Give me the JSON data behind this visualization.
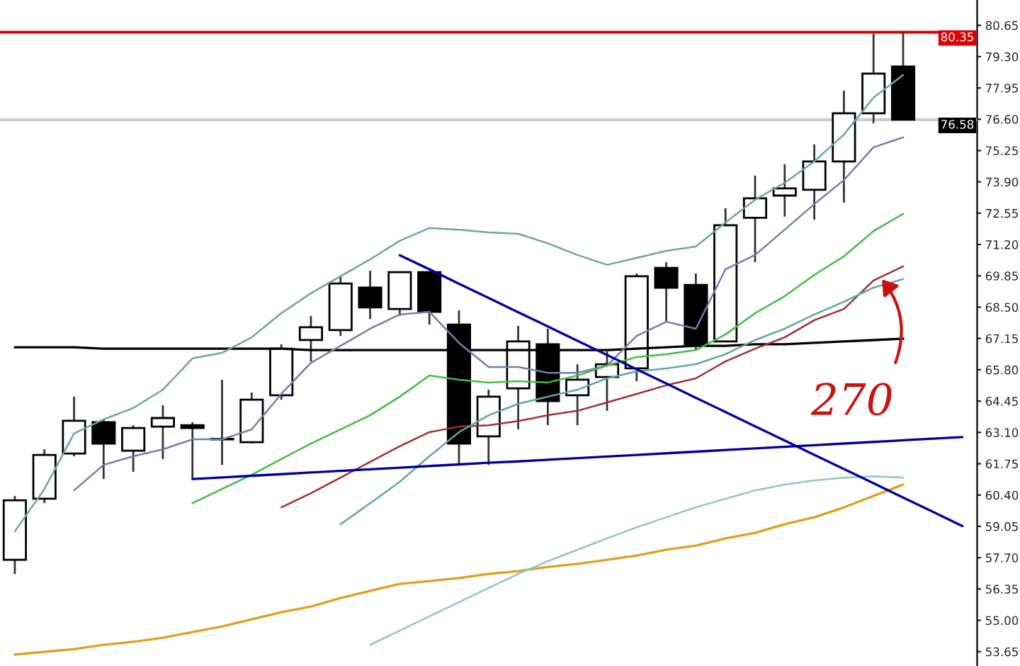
{
  "chart_data": {
    "type": "candlestick",
    "categories": [
      null,
      null,
      null,
      null,
      null,
      null,
      null,
      null,
      null,
      null,
      null,
      null,
      null,
      null,
      null,
      null,
      null,
      null,
      null,
      null,
      null,
      null,
      null,
      null,
      null,
      null,
      null,
      null,
      null,
      null,
      null,
      null,
      null
    ],
    "ohlc": [
      [
        57.61,
        60.36,
        56.99,
        60.17
      ],
      [
        60.24,
        62.37,
        60.05,
        62.13
      ],
      [
        62.19,
        64.64,
        62.07,
        63.6
      ],
      [
        63.54,
        63.66,
        61.09,
        62.62
      ],
      [
        62.31,
        63.41,
        61.4,
        63.29
      ],
      [
        63.35,
        64.27,
        61.95,
        63.72
      ],
      [
        63.41,
        63.54,
        61.09,
        63.29
      ],
      [
        62.8,
        65.37,
        61.7,
        62.8
      ],
      [
        62.68,
        64.82,
        62.62,
        64.51
      ],
      [
        64.7,
        66.9,
        64.51,
        66.71
      ],
      [
        67.08,
        68.12,
        66.16,
        67.63
      ],
      [
        67.51,
        69.83,
        67.26,
        69.52
      ],
      [
        69.34,
        70.07,
        67.99,
        68.49
      ],
      [
        68.42,
        70.01,
        68.12,
        70.01
      ],
      [
        70.01,
        70.01,
        67.75,
        68.3
      ],
      [
        67.75,
        68.36,
        61.7,
        62.62
      ],
      [
        62.93,
        64.94,
        61.7,
        64.64
      ],
      [
        65.0,
        67.69,
        63.23,
        67.02
      ],
      [
        66.9,
        67.57,
        63.41,
        64.45
      ],
      [
        64.7,
        66.04,
        63.41,
        65.37
      ],
      [
        65.49,
        66.59,
        64.03,
        66.04
      ],
      [
        65.86,
        69.95,
        65.31,
        69.83
      ],
      [
        70.19,
        70.44,
        67.87,
        69.34
      ],
      [
        69.46,
        69.95,
        66.65,
        66.9
      ],
      [
        67.02,
        72.76,
        67.02,
        72.03
      ],
      [
        72.35,
        74.17,
        70.44,
        73.19
      ],
      [
        73.31,
        74.66,
        72.4,
        73.62
      ],
      [
        73.56,
        75.51,
        72.27,
        74.78
      ],
      [
        74.78,
        77.83,
        73.01,
        76.86
      ],
      [
        76.86,
        80.28,
        76.43,
        78.57
      ],
      [
        78.87,
        80.35,
        76.55,
        76.58
      ],
      null,
      null
    ],
    "series": [
      {
        "type": "line",
        "color": "#000000",
        "values": [
          66.77,
          66.77,
          66.77,
          66.71,
          66.71,
          66.71,
          66.71,
          66.71,
          66.71,
          66.71,
          66.65,
          66.65,
          66.65,
          66.65,
          66.65,
          66.65,
          66.65,
          66.65,
          66.65,
          66.65,
          66.65,
          66.71,
          66.77,
          66.83,
          66.83,
          66.9,
          66.9,
          66.96,
          67.02,
          67.08,
          67.14,
          null,
          null
        ]
      },
      {
        "type": "line",
        "color": "#e0a020",
        "values": [
          53.52,
          53.64,
          53.76,
          53.94,
          54.07,
          54.25,
          54.49,
          54.74,
          55.04,
          55.35,
          55.59,
          55.96,
          56.27,
          56.57,
          56.69,
          56.82,
          57.0,
          57.12,
          57.3,
          57.43,
          57.61,
          57.79,
          58.04,
          58.22,
          58.53,
          58.77,
          59.14,
          59.44,
          59.87,
          60.36,
          60.85,
          null,
          null
        ]
      },
      {
        "type": "line",
        "color": "#8fc8c4",
        "values": [
          null,
          null,
          null,
          null,
          null,
          null,
          null,
          null,
          null,
          null,
          null,
          null,
          53.94,
          54.55,
          55.17,
          55.78,
          56.39,
          57.0,
          57.55,
          58.04,
          58.53,
          59.01,
          59.44,
          59.87,
          60.24,
          60.6,
          60.85,
          61.03,
          61.15,
          61.21,
          61.15,
          null,
          null
        ]
      },
      {
        "type": "line",
        "color": "#6aa89e",
        "values": [
          58.83,
          60.66,
          63.05,
          63.66,
          64.15,
          64.94,
          66.29,
          66.53,
          67.2,
          68.24,
          69.1,
          69.83,
          70.56,
          71.36,
          71.91,
          71.84,
          71.72,
          71.66,
          71.25,
          70.75,
          70.32,
          70.62,
          70.93,
          71.11,
          72.15,
          73.13,
          73.86,
          74.78,
          75.94,
          77.53,
          78.51,
          null,
          null
        ]
      },
      {
        "type": "line",
        "color": "#7080a8",
        "values": [
          null,
          null,
          60.6,
          61.7,
          62.07,
          62.37,
          62.8,
          62.8,
          63.23,
          64.76,
          66.1,
          66.83,
          67.57,
          68.18,
          68.3,
          66.96,
          65.92,
          65.92,
          65.67,
          65.67,
          65.98,
          67.26,
          67.87,
          67.57,
          70.13,
          70.75,
          71.84,
          72.94,
          73.98,
          75.39,
          75.82,
          null,
          null
        ]
      },
      {
        "type": "line",
        "color": "#44bb44",
        "values": [
          null,
          null,
          null,
          null,
          null,
          null,
          60.05,
          60.66,
          61.27,
          61.95,
          62.62,
          63.23,
          63.84,
          64.64,
          65.55,
          65.37,
          65.25,
          65.31,
          65.25,
          65.55,
          65.98,
          66.35,
          66.47,
          66.65,
          67.32,
          68.24,
          68.97,
          69.89,
          70.69,
          71.78,
          72.52,
          null,
          null
        ]
      },
      {
        "type": "line",
        "color": "#a03030",
        "values": [
          null,
          null,
          null,
          null,
          null,
          null,
          null,
          null,
          null,
          59.87,
          60.48,
          61.15,
          61.83,
          62.5,
          63.11,
          63.35,
          63.41,
          63.59,
          63.84,
          64.03,
          64.39,
          64.76,
          65.13,
          65.43,
          66.16,
          66.71,
          67.2,
          67.94,
          68.42,
          69.65,
          70.26,
          null,
          null
        ]
      },
      {
        "type": "line",
        "color": "#5fa8a0",
        "values": [
          null,
          null,
          null,
          null,
          null,
          null,
          null,
          null,
          null,
          null,
          null,
          59.14,
          60.05,
          60.97,
          62.07,
          63.11,
          63.84,
          64.33,
          64.64,
          64.94,
          65.43,
          65.73,
          65.86,
          66.04,
          66.47,
          67.08,
          67.57,
          68.18,
          68.73,
          69.34,
          69.71,
          null,
          null
        ]
      },
      {
        "type": "line",
        "color": "#0000a0",
        "values": [
          null,
          null,
          null,
          null,
          null,
          null,
          null,
          null,
          null,
          null,
          null,
          null,
          null,
          70.74,
          70.13,
          69.51,
          68.9,
          68.28,
          67.67,
          67.05,
          66.44,
          65.82,
          65.21,
          64.59,
          63.98,
          63.36,
          62.75,
          62.13,
          61.52,
          60.91,
          60.29,
          59.68,
          59.06
        ]
      },
      {
        "type": "line",
        "color": "#0000a0",
        "values": [
          null,
          null,
          null,
          null,
          null,
          null,
          61.09,
          61.16,
          61.23,
          61.3,
          61.37,
          61.44,
          61.51,
          61.58,
          61.65,
          61.72,
          61.79,
          61.85,
          61.92,
          61.99,
          62.06,
          62.13,
          62.2,
          62.27,
          62.34,
          62.41,
          62.48,
          62.55,
          62.62,
          62.69,
          62.76,
          62.83,
          62.9
        ]
      }
    ],
    "ylim": [
      53.03,
      81.74
    ],
    "yticks": [
      {
        "value": 53.65,
        "label": "53.65"
      },
      {
        "value": 55.0,
        "label": "55.00"
      },
      {
        "value": 56.35,
        "label": "56.35"
      },
      {
        "value": 57.7,
        "label": "57.70"
      },
      {
        "value": 59.05,
        "label": "59.05"
      },
      {
        "value": 60.4,
        "label": "60.40"
      },
      {
        "value": 61.75,
        "label": "61.75"
      },
      {
        "value": 63.1,
        "label": "63.10"
      },
      {
        "value": 64.45,
        "label": "64.45"
      },
      {
        "value": 65.8,
        "label": "65.80"
      },
      {
        "value": 67.15,
        "label": "67.15"
      },
      {
        "value": 68.5,
        "label": "68.50"
      },
      {
        "value": 69.85,
        "label": "69.85"
      },
      {
        "value": 71.2,
        "label": "71.20"
      },
      {
        "value": 72.55,
        "label": "72.55"
      },
      {
        "value": 73.9,
        "label": "73.90"
      },
      {
        "value": 75.25,
        "label": "75.25"
      },
      {
        "value": 76.6,
        "label": "76.60"
      },
      {
        "value": 77.95,
        "label": "77.95"
      },
      {
        "value": 79.3,
        "label": "79.30"
      },
      {
        "value": 80.65,
        "label": "80.65"
      }
    ],
    "tick_labels": "y",
    "ref_lines": [
      {
        "axis": "y",
        "value": 80.35,
        "label": "80.35",
        "color": "#dd0000",
        "line_style": "solid"
      },
      {
        "axis": "y",
        "value": 76.58,
        "label": "76.58",
        "color": "#cccccc",
        "line_style": "solid"
      }
    ],
    "annotations": [
      "270"
    ],
    "grid": false,
    "legend": false
  }
}
